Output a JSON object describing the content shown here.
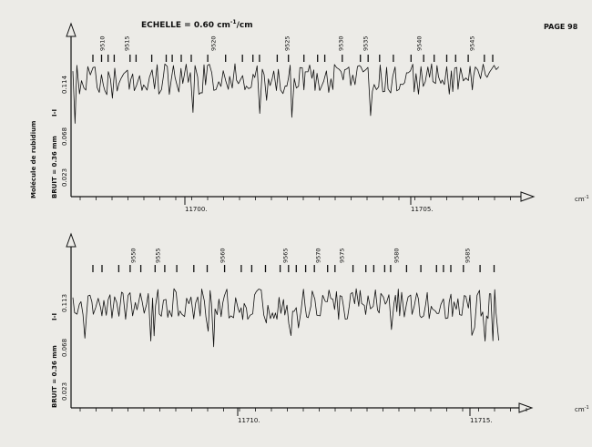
{
  "header": {
    "scale_label": "ECHELLE = 0.60 cm",
    "scale_exp": "-1",
    "scale_unit": "/cm",
    "page_label": "PAGE 98"
  },
  "colors": {
    "paper": "#ecebe7",
    "ink": "#111111"
  },
  "chart_data": [
    {
      "type": "line",
      "name_label": "Molécule de rubidium",
      "bruit_label": "BRUIT = 0.36 mm",
      "y_axis_label": "I-I",
      "x_unit": "cm",
      "x_ticks": [
        11700,
        11705
      ],
      "x_tick_labels": [
        "11700.",
        "11705."
      ],
      "y_tick_labels": [
        "0.114",
        "0.068",
        "0.023"
      ],
      "line_ids": [
        9510,
        9515,
        9520,
        9525,
        9530,
        9535,
        9540,
        9545
      ],
      "line_id_labels": [
        "9510",
        "9515",
        "9520",
        "9525",
        "9530",
        "9535",
        "9540",
        "9545"
      ],
      "x_range_plot": [
        11698.5,
        11707.0
      ],
      "signal_level": 0.114,
      "noise_amplitude": 0.012,
      "grid": false
    },
    {
      "type": "line",
      "bruit_label": "BRUIT = 0.36 mm",
      "y_axis_label": "I-I",
      "x_unit": "cm",
      "x_ticks": [
        11710,
        11715
      ],
      "x_tick_labels": [
        "11710.",
        "11715."
      ],
      "y_tick_labels": [
        "0.113",
        "0.068",
        "0.023"
      ],
      "line_ids": [
        9550,
        9555,
        9560,
        9565,
        9570,
        9575,
        9580,
        9585
      ],
      "line_id_labels": [
        "9550",
        "9555",
        "9560",
        "9565",
        "9570",
        "9575",
        "9580",
        "9585"
      ],
      "x_range_plot": [
        11706.5,
        11715.8
      ],
      "signal_level": 0.113,
      "noise_amplitude": 0.012,
      "grid": false
    }
  ]
}
